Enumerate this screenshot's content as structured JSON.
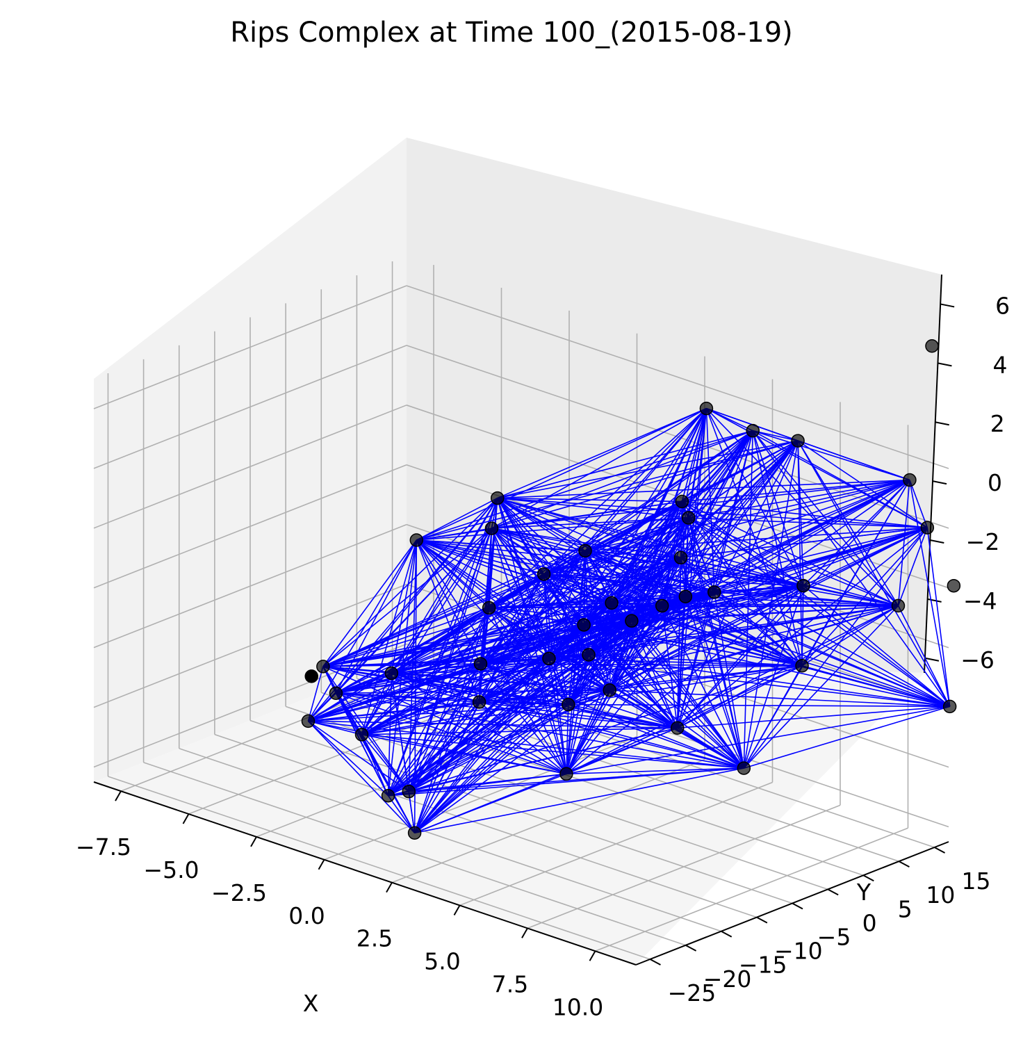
{
  "chart_data": {
    "type": "scatter",
    "title": "Rips Complex at Time 100_(2015-08-19)",
    "xlabel": "X",
    "ylabel": "Y",
    "zlabel": "",
    "x_ticks": [
      "−7.5",
      "−5.0",
      "−2.5",
      "0.0",
      "2.5",
      "5.0",
      "7.5",
      "10.0"
    ],
    "y_ticks": [
      "−25",
      "−20",
      "−15",
      "−10",
      "−5",
      "0",
      "5",
      "10",
      "15"
    ],
    "z_ticks": [
      "−6",
      "−4",
      "−2",
      "0",
      "2",
      "4",
      "6"
    ],
    "grid": true,
    "colors": {
      "edges": "#0000ff",
      "points": "#000000",
      "pane": "#f2f2f2",
      "grid": "#b0b0b0"
    },
    "points_screen_note": "projected 3D point cloud",
    "points": [
      {
        "x": -4.2,
        "y": 2.0,
        "z": 0.2
      },
      {
        "x": 2.3,
        "y": 18.0,
        "z": 5.1
      },
      {
        "x": 4.8,
        "y": 15.0,
        "z": 5.4
      },
      {
        "x": 6.2,
        "y": 16.0,
        "z": 5.4
      },
      {
        "x": 9.8,
        "y": 18.0,
        "z": 5.0
      },
      {
        "x": 11.5,
        "y": 14.0,
        "z": 4.3
      },
      {
        "x": 12.0,
        "y": 8.0,
        "z": 2.4
      },
      {
        "x": 16.0,
        "y": 0.0,
        "z": 1.0
      },
      {
        "x": 10.5,
        "y": -8.0,
        "z": -2.0
      },
      {
        "x": 7.0,
        "y": -4.0,
        "z": -2.1
      },
      {
        "x": 5.0,
        "y": -12.0,
        "z": -3.5
      },
      {
        "x": -1.5,
        "y": -16.0,
        "z": -3.8
      },
      {
        "x": 1.5,
        "y": -20.0,
        "z": -5.8
      },
      {
        "x": -2.0,
        "y": 5.0,
        "z": 2.0
      },
      {
        "x": 0.5,
        "y": 2.0,
        "z": 0.5
      },
      {
        "x": 1.5,
        "y": 4.0,
        "z": 1.4
      },
      {
        "x": 2.5,
        "y": 0.0,
        "z": -0.4
      },
      {
        "x": 3.2,
        "y": -2.0,
        "z": -1.0
      },
      {
        "x": 4.0,
        "y": 1.0,
        "z": 0.1
      },
      {
        "x": 4.6,
        "y": 3.0,
        "z": 0.6
      },
      {
        "x": 5.2,
        "y": 4.0,
        "z": 1.0
      },
      {
        "x": 6.0,
        "y": 5.0,
        "z": 1.3
      },
      {
        "x": 3.0,
        "y": 2.0,
        "z": 0.3
      },
      {
        "x": 2.0,
        "y": -3.0,
        "z": -1.4
      },
      {
        "x": 0.0,
        "y": -5.0,
        "z": -2.0
      },
      {
        "x": -2.5,
        "y": -8.0,
        "z": -2.8
      },
      {
        "x": -4.5,
        "y": -10.0,
        "z": -3.0
      },
      {
        "x": -3.5,
        "y": -12.0,
        "z": -3.4
      },
      {
        "x": 1.0,
        "y": -9.0,
        "z": -2.6
      },
      {
        "x": 3.5,
        "y": -6.0,
        "z": -2.2
      },
      {
        "x": 4.5,
        "y": -4.0,
        "z": -1.6
      },
      {
        "x": 8.5,
        "y": 8.0,
        "z": 2.0
      },
      {
        "x": 9.5,
        "y": 4.0,
        "z": 0.0
      },
      {
        "x": 3.5,
        "y": 10.0,
        "z": 3.1
      },
      {
        "x": 4.0,
        "y": 9.0,
        "z": 2.8
      },
      {
        "x": 4.5,
        "y": 6.0,
        "z": 1.9
      },
      {
        "x": -1.0,
        "y": 0.0,
        "z": -0.9
      },
      {
        "x": -4.0,
        "y": -14.0,
        "z": -4.3
      },
      {
        "x": 0.0,
        "y": -18.0,
        "z": -5.2
      },
      {
        "x": 0.5,
        "y": -17.0,
        "z": -5.0
      },
      {
        "x": -3.0,
        "y": 8.0,
        "z": 0.4
      },
      {
        "x": -6.5,
        "y": -4.0,
        "z": -4.5
      },
      {
        "x": 13.0,
        "y": 12.0,
        "z": 3.0
      },
      {
        "x": 8.0,
        "y": 28.0,
        "z": 8.0
      }
    ],
    "point_count": 44
  }
}
